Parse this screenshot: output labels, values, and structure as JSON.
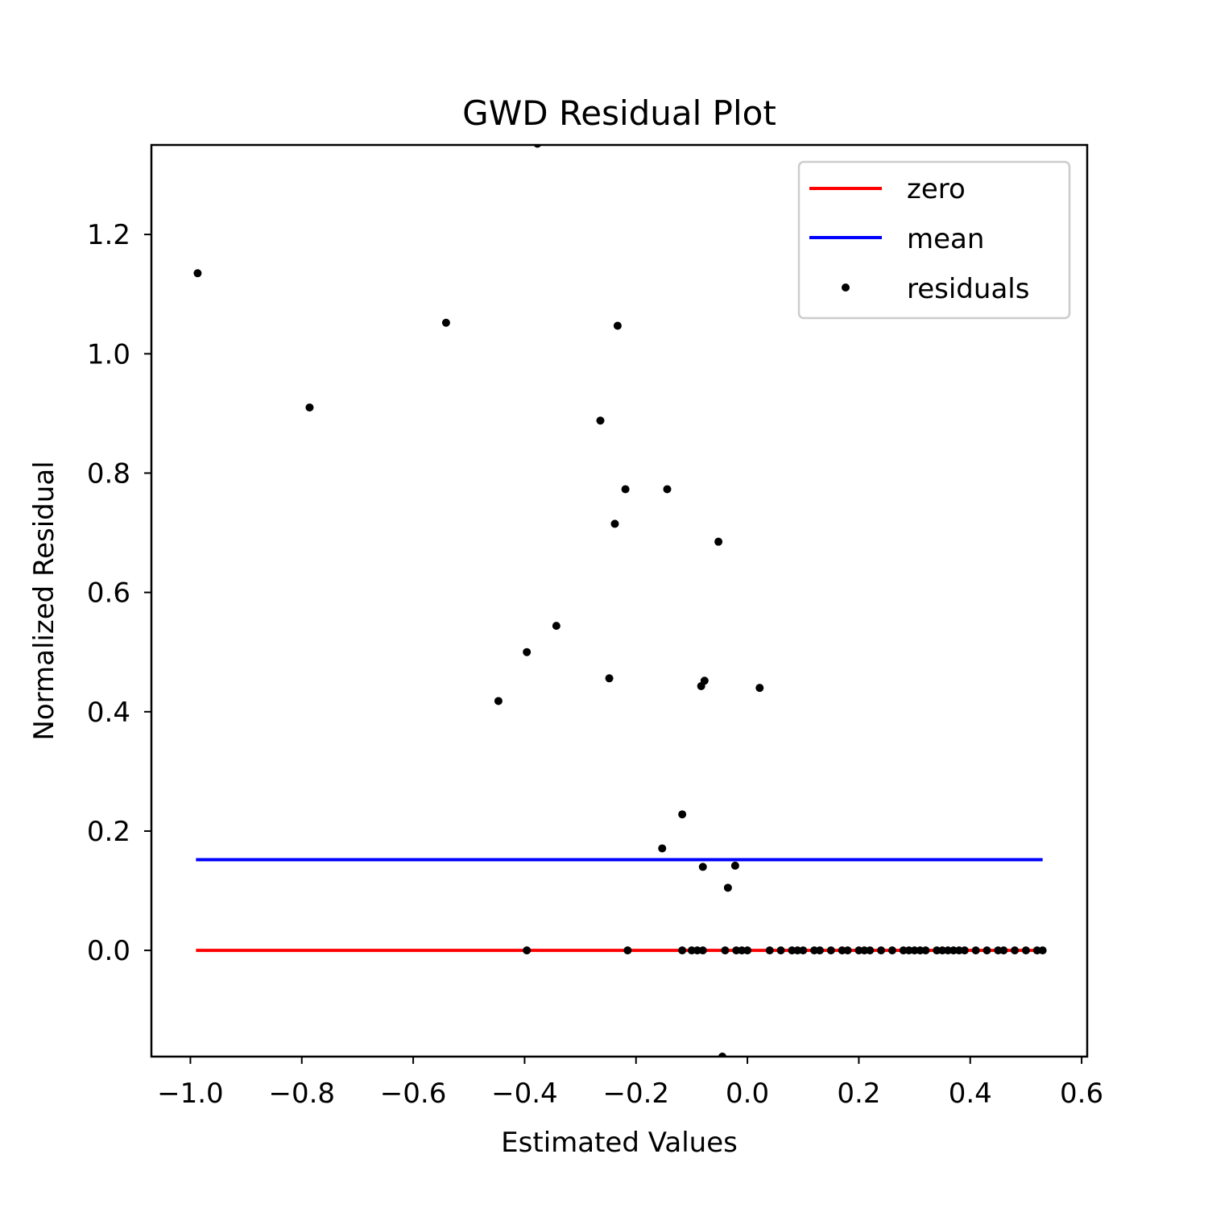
{
  "chart_data": {
    "type": "scatter",
    "title": "GWD Residual Plot",
    "xlabel": "Estimated Values",
    "ylabel": "Normalized Residual",
    "xlim": [
      -1.07,
      0.61
    ],
    "ylim": [
      -0.178,
      1.35
    ],
    "x_ticks": [
      -1.0,
      -0.8,
      -0.6,
      -0.4,
      -0.2,
      0.0,
      0.2,
      0.4,
      0.6
    ],
    "x_tick_labels": [
      "−1.0",
      "−0.8",
      "−0.6",
      "−0.4",
      "−0.2",
      "0.0",
      "0.2",
      "0.4",
      "0.6"
    ],
    "y_ticks": [
      0.0,
      0.2,
      0.4,
      0.6,
      0.8,
      1.0,
      1.2
    ],
    "y_tick_labels": [
      "0.0",
      "0.2",
      "0.4",
      "0.6",
      "0.8",
      "1.0",
      "1.2"
    ],
    "grid": false,
    "legend_position": "top-right",
    "series": [
      {
        "name": "zero",
        "kind": "line",
        "color": "#ff0000",
        "x": [
          -0.99,
          0.53
        ],
        "y": [
          0.0,
          0.0
        ]
      },
      {
        "name": "mean",
        "kind": "line",
        "color": "#0000ff",
        "x": [
          -0.99,
          0.53
        ],
        "y": [
          0.152,
          0.152
        ]
      },
      {
        "name": "residuals",
        "kind": "scatter",
        "color": "#000000",
        "x": [
          -0.987,
          -0.786,
          -0.541,
          -0.377,
          -0.233,
          -0.264,
          -0.219,
          -0.144,
          -0.238,
          -0.052,
          -0.343,
          -0.396,
          -0.447,
          -0.248,
          -0.077,
          -0.083,
          0.022,
          -0.117,
          -0.153,
          -0.08,
          -0.022,
          -0.035,
          -0.045,
          -0.396,
          -0.215,
          -0.117,
          -0.1,
          -0.09,
          -0.08,
          -0.04,
          -0.02,
          -0.01,
          0.0,
          0.04,
          0.06,
          0.08,
          0.09,
          0.1,
          0.12,
          0.13,
          0.15,
          0.17,
          0.18,
          0.2,
          0.21,
          0.22,
          0.24,
          0.26,
          0.28,
          0.29,
          0.3,
          0.31,
          0.32,
          0.34,
          0.35,
          0.36,
          0.37,
          0.38,
          0.39,
          0.41,
          0.43,
          0.45,
          0.46,
          0.48,
          0.5,
          0.52,
          0.53
        ],
        "y": [
          1.135,
          0.91,
          1.052,
          1.352,
          1.047,
          0.888,
          0.773,
          0.773,
          0.715,
          0.685,
          0.544,
          0.5,
          0.418,
          0.456,
          0.452,
          0.443,
          0.44,
          0.228,
          0.171,
          0.14,
          0.142,
          0.105,
          -0.178,
          0.0,
          0.0,
          0.0,
          0.0,
          0.0,
          0.0,
          0.0,
          0.0,
          0.0,
          0.0,
          0.0,
          0.0,
          0.0,
          0.0,
          0.0,
          0.0,
          0.0,
          0.0,
          0.0,
          0.0,
          0.0,
          0.0,
          0.0,
          0.0,
          0.0,
          0.0,
          0.0,
          0.0,
          0.0,
          0.0,
          0.0,
          0.0,
          0.0,
          0.0,
          0.0,
          0.0,
          0.0,
          0.0,
          0.0,
          0.0,
          0.0,
          0.0,
          0.0,
          0.0
        ]
      }
    ]
  }
}
